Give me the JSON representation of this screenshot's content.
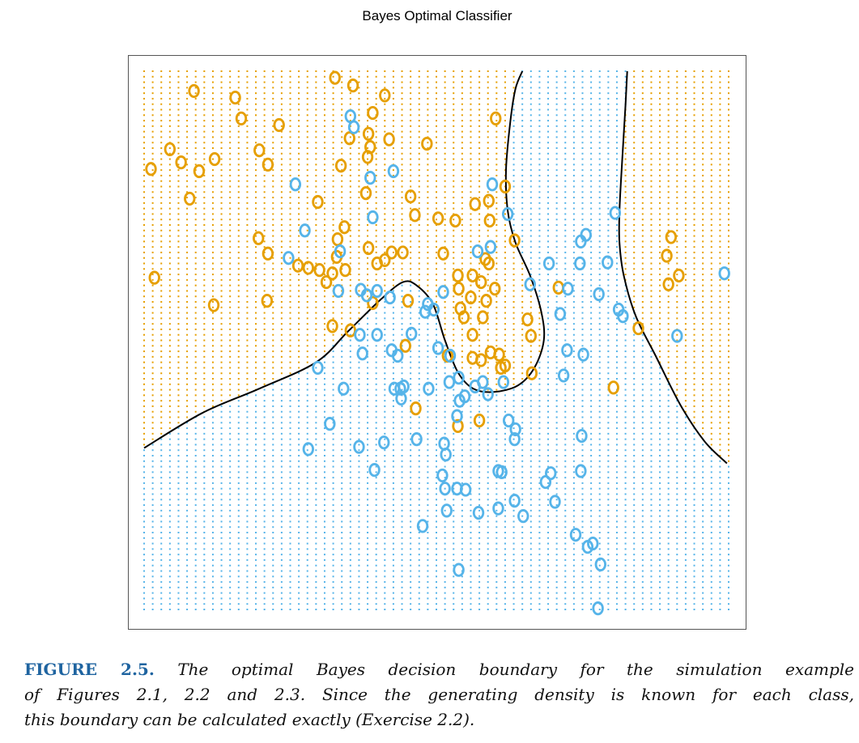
{
  "chart_data": {
    "type": "scatter",
    "title": "Bayes Optimal Classifier",
    "xlabel": "",
    "ylabel": "",
    "xlim": [
      -2.6,
      4.2
    ],
    "ylim": [
      -2.0,
      2.9
    ],
    "axes_shown": false,
    "grid": {
      "x_from": -2.6,
      "x_to": 4.2,
      "x_step": 0.1,
      "y_from": -2.0,
      "y_to": 2.9,
      "y_step": 0.05,
      "style": "dotted background classified by region"
    },
    "colors": {
      "orange": "#E69F00",
      "blue": "#56B4E9",
      "boundary": "#000000",
      "frame": "#555555"
    },
    "marker": "o",
    "series": [
      {
        "class": "orange",
        "points": [
          [
            -2.02,
            2.72
          ],
          [
            -0.38,
            2.84
          ],
          [
            -0.17,
            2.77
          ],
          [
            0.2,
            2.68
          ],
          [
            -1.54,
            2.66
          ],
          [
            -1.47,
            2.47
          ],
          [
            -1.03,
            2.41
          ],
          [
            0.06,
            2.52
          ],
          [
            0.01,
            2.33
          ],
          [
            -0.21,
            2.29
          ],
          [
            0.25,
            2.28
          ],
          [
            0.69,
            2.24
          ],
          [
            -2.3,
            2.19
          ],
          [
            -2.52,
            2.01
          ],
          [
            -2.17,
            2.07
          ],
          [
            -1.96,
            1.99
          ],
          [
            -1.78,
            2.1
          ],
          [
            -1.26,
            2.18
          ],
          [
            -1.16,
            2.05
          ],
          [
            -0.31,
            2.04
          ],
          [
            0.0,
            2.12
          ],
          [
            0.03,
            2.21
          ],
          [
            1.49,
            2.47
          ],
          [
            -2.07,
            1.74
          ],
          [
            -0.58,
            1.71
          ],
          [
            -0.02,
            1.79
          ],
          [
            0.5,
            1.76
          ],
          [
            0.55,
            1.59
          ],
          [
            0.82,
            1.56
          ],
          [
            1.02,
            1.54
          ],
          [
            1.25,
            1.69
          ],
          [
            1.41,
            1.72
          ],
          [
            1.6,
            1.85
          ],
          [
            1.42,
            1.54
          ],
          [
            -0.27,
            1.48
          ],
          [
            -0.35,
            1.37
          ],
          [
            0.01,
            1.29
          ],
          [
            0.2,
            1.18
          ],
          [
            0.28,
            1.25
          ],
          [
            0.41,
            1.25
          ],
          [
            0.11,
            1.15
          ],
          [
            -1.27,
            1.38
          ],
          [
            -1.16,
            1.24
          ],
          [
            -0.81,
            1.13
          ],
          [
            -0.69,
            1.11
          ],
          [
            -0.56,
            1.09
          ],
          [
            -0.48,
            0.98
          ],
          [
            -0.41,
            1.06
          ],
          [
            -0.26,
            1.09
          ],
          [
            -0.36,
            1.21
          ],
          [
            0.88,
            1.24
          ],
          [
            1.37,
            1.19
          ],
          [
            1.41,
            1.15
          ],
          [
            1.05,
            1.04
          ],
          [
            1.22,
            1.04
          ],
          [
            1.32,
            0.98
          ],
          [
            1.48,
            0.92
          ],
          [
            1.06,
            0.92
          ],
          [
            1.2,
            0.84
          ],
          [
            1.38,
            0.81
          ],
          [
            1.08,
            0.74
          ],
          [
            1.34,
            0.66
          ],
          [
            1.12,
            0.66
          ],
          [
            -2.48,
            1.02
          ],
          [
            -1.79,
            0.77
          ],
          [
            -1.17,
            0.81
          ],
          [
            -0.41,
            0.58
          ],
          [
            -0.2,
            0.54
          ],
          [
            0.06,
            0.79
          ],
          [
            0.47,
            0.81
          ],
          [
            0.44,
            0.4
          ],
          [
            1.22,
            0.5
          ],
          [
            0.93,
            0.31
          ],
          [
            1.22,
            0.29
          ],
          [
            1.32,
            0.27
          ],
          [
            1.43,
            0.34
          ],
          [
            1.53,
            0.32
          ],
          [
            1.6,
            0.22
          ],
          [
            1.55,
            0.2
          ],
          [
            1.91,
            0.15
          ],
          [
            1.9,
            0.49
          ],
          [
            1.71,
            1.36
          ],
          [
            2.22,
            0.93
          ],
          [
            1.86,
            0.64
          ],
          [
            2.86,
            0.02
          ],
          [
            0.56,
            -0.17
          ],
          [
            1.05,
            -0.33
          ],
          [
            1.3,
            -0.28
          ],
          [
            3.15,
            0.56
          ],
          [
            3.53,
            1.39
          ],
          [
            3.48,
            1.22
          ],
          [
            3.5,
            0.96
          ],
          [
            3.62,
            1.04
          ]
        ]
      },
      {
        "class": "blue",
        "points": [
          [
            -0.2,
            2.49
          ],
          [
            -0.16,
            2.39
          ],
          [
            0.3,
            1.99
          ],
          [
            0.03,
            1.93
          ],
          [
            -0.84,
            1.87
          ],
          [
            0.06,
            1.57
          ],
          [
            -0.73,
            1.45
          ],
          [
            -0.32,
            1.26
          ],
          [
            -0.92,
            1.2
          ],
          [
            1.45,
            1.87
          ],
          [
            1.63,
            1.6
          ],
          [
            1.28,
            1.26
          ],
          [
            1.43,
            1.3
          ],
          [
            1.89,
            0.96
          ],
          [
            2.11,
            1.15
          ],
          [
            2.47,
            1.15
          ],
          [
            2.48,
            1.35
          ],
          [
            2.54,
            1.41
          ],
          [
            2.79,
            1.16
          ],
          [
            2.88,
            1.61
          ],
          [
            4.15,
            1.06
          ],
          [
            -0.34,
            0.9
          ],
          [
            -0.08,
            0.91
          ],
          [
            -0.01,
            0.86
          ],
          [
            0.11,
            0.9
          ],
          [
            0.26,
            0.84
          ],
          [
            0.88,
            0.89
          ],
          [
            0.7,
            0.78
          ],
          [
            0.77,
            0.73
          ],
          [
            0.67,
            0.71
          ],
          [
            2.24,
            0.69
          ],
          [
            2.69,
            0.87
          ],
          [
            2.92,
            0.73
          ],
          [
            2.97,
            0.67
          ],
          [
            3.6,
            0.49
          ],
          [
            2.33,
            0.92
          ],
          [
            -0.09,
            0.5
          ],
          [
            -0.06,
            0.33
          ],
          [
            0.11,
            0.5
          ],
          [
            0.28,
            0.36
          ],
          [
            0.35,
            0.31
          ],
          [
            0.51,
            0.51
          ],
          [
            0.82,
            0.38
          ],
          [
            0.96,
            0.31
          ],
          [
            -0.58,
            0.2
          ],
          [
            -0.28,
            0.01
          ],
          [
            0.31,
            0.01
          ],
          [
            0.38,
            0.01
          ],
          [
            0.42,
            0.03
          ],
          [
            0.39,
            -0.08
          ],
          [
            0.71,
            0.01
          ],
          [
            0.95,
            0.07
          ],
          [
            1.06,
            0.11
          ],
          [
            1.07,
            -0.1
          ],
          [
            1.13,
            -0.06
          ],
          [
            1.4,
            -0.04
          ],
          [
            1.25,
            0.03
          ],
          [
            1.34,
            0.07
          ],
          [
            1.58,
            0.07
          ],
          [
            2.28,
            0.13
          ],
          [
            2.32,
            0.36
          ],
          [
            2.51,
            0.32
          ],
          [
            -0.44,
            -0.31
          ],
          [
            -0.69,
            -0.54
          ],
          [
            -0.1,
            -0.52
          ],
          [
            0.19,
            -0.48
          ],
          [
            0.57,
            -0.45
          ],
          [
            0.89,
            -0.49
          ],
          [
            0.08,
            -0.73
          ],
          [
            0.91,
            -0.59
          ],
          [
            1.04,
            -0.24
          ],
          [
            1.64,
            -0.28
          ],
          [
            1.72,
            -0.36
          ],
          [
            1.71,
            -0.45
          ],
          [
            2.49,
            -0.42
          ],
          [
            1.52,
            -0.74
          ],
          [
            1.56,
            -0.75
          ],
          [
            2.13,
            -0.76
          ],
          [
            2.07,
            -0.84
          ],
          [
            2.48,
            -0.74
          ],
          [
            0.87,
            -0.78
          ],
          [
            0.9,
            -0.9
          ],
          [
            1.04,
            -0.9
          ],
          [
            1.14,
            -0.91
          ],
          [
            0.92,
            -1.1
          ],
          [
            1.29,
            -1.12
          ],
          [
            1.52,
            -1.08
          ],
          [
            1.71,
            -1.01
          ],
          [
            1.81,
            -1.15
          ],
          [
            2.18,
            -1.02
          ],
          [
            0.64,
            -1.24
          ],
          [
            2.42,
            -1.32
          ],
          [
            2.56,
            -1.43
          ],
          [
            2.62,
            -1.4
          ],
          [
            2.71,
            -1.59
          ],
          [
            1.06,
            -1.64
          ],
          [
            2.68,
            -1.99
          ]
        ]
      }
    ],
    "decision_boundary": [
      {
        "name": "",
        "points": [
          [
            -2.6,
            -0.53
          ],
          [
            -1.92,
            -0.21
          ],
          [
            -1.26,
            0.01
          ],
          [
            -0.6,
            0.25
          ],
          [
            -0.23,
            0.53
          ],
          [
            0.15,
            0.82
          ],
          [
            0.41,
            0.98
          ],
          [
            0.57,
            0.95
          ],
          [
            0.76,
            0.78
          ],
          [
            0.9,
            0.45
          ],
          [
            1.05,
            0.16
          ],
          [
            1.23,
            0.01
          ],
          [
            1.47,
            -0.02
          ],
          [
            1.75,
            0.04
          ],
          [
            1.94,
            0.2
          ],
          [
            2.05,
            0.45
          ],
          [
            2.02,
            0.71
          ],
          [
            1.89,
            1.04
          ],
          [
            1.72,
            1.34
          ],
          [
            1.63,
            1.63
          ],
          [
            1.61,
            2.0
          ],
          [
            1.66,
            2.44
          ],
          [
            1.72,
            2.74
          ],
          [
            1.8,
            2.9
          ]
        ]
      },
      {
        "name": "",
        "points": [
          [
            3.02,
            2.9
          ],
          [
            3.0,
            2.59
          ],
          [
            2.96,
            2.07
          ],
          [
            2.93,
            1.63
          ],
          [
            2.93,
            1.34
          ],
          [
            2.98,
            1.04
          ],
          [
            3.12,
            0.67
          ],
          [
            3.35,
            0.31
          ],
          [
            3.64,
            -0.14
          ],
          [
            3.92,
            -0.47
          ],
          [
            4.18,
            -0.67
          ]
        ]
      }
    ]
  },
  "caption": {
    "label": "FIGURE 2.5.",
    "lines": [
      "The optimal Bayes decision boundary for the simulation example",
      "of Figures 2.1, 2.2 and 2.3. Since the generating density is known for each class,",
      "this boundary can be calculated exactly (Exercise 2.2)."
    ]
  }
}
